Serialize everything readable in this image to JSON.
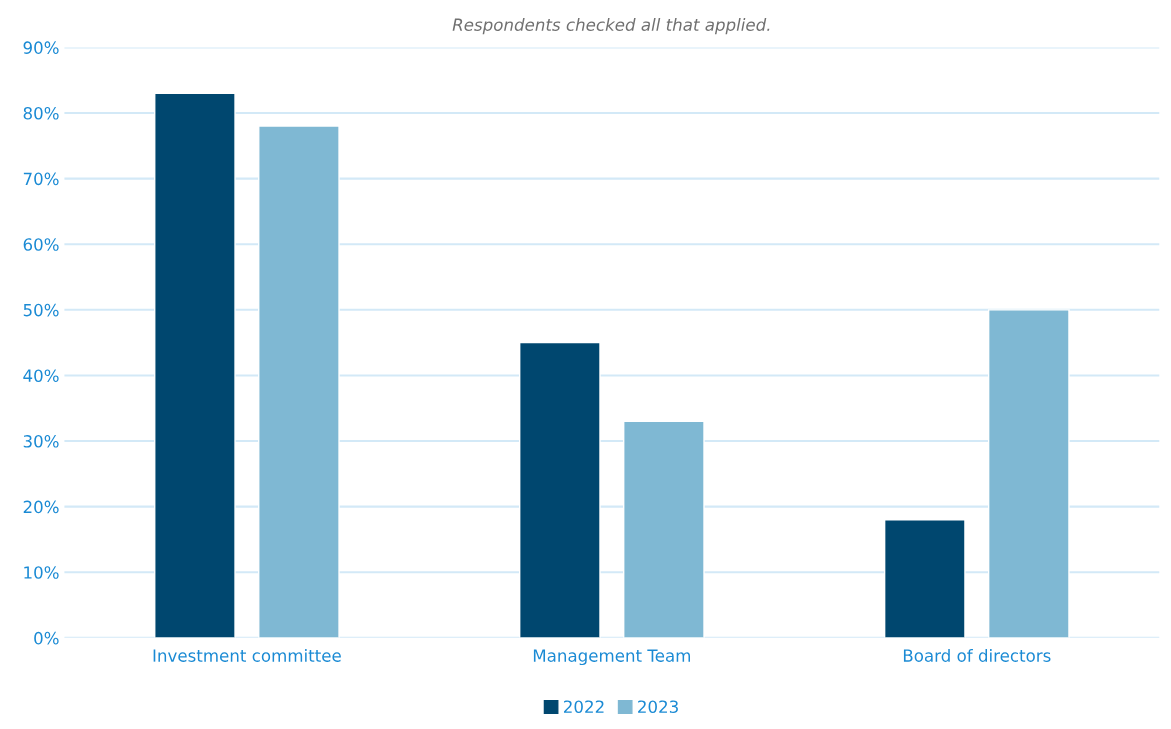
{
  "chart_data": {
    "type": "bar",
    "subtitle": "Respondents checked all that applied.",
    "categories": [
      "Investment committee",
      "Management Team",
      "Board of directors"
    ],
    "series": [
      {
        "name": "2022",
        "color": "#00476f",
        "values": [
          83,
          45,
          18
        ]
      },
      {
        "name": "2023",
        "color": "#7fb8d3",
        "values": [
          78,
          33,
          50
        ]
      }
    ],
    "ylim": [
      0,
      90
    ],
    "yticks": [
      {
        "value": 0,
        "label": "0%"
      },
      {
        "value": 10,
        "label": "10%"
      },
      {
        "value": 20,
        "label": "20%"
      },
      {
        "value": 30,
        "label": "30%"
      },
      {
        "value": 40,
        "label": "40%"
      },
      {
        "value": 50,
        "label": "50%"
      },
      {
        "value": 60,
        "label": "60%"
      },
      {
        "value": 70,
        "label": "70%"
      },
      {
        "value": 80,
        "label": "80%"
      },
      {
        "value": 90,
        "label": "90%"
      }
    ],
    "grid": "y",
    "legend": "bottom"
  }
}
